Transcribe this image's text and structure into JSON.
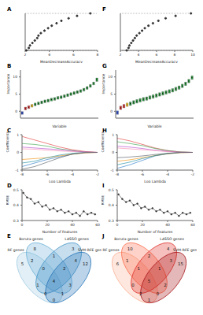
{
  "chart_data": [
    {
      "type": "dot",
      "title": "A",
      "x_label": "MeanDecreaseAccuracy",
      "orientation": "horizontal",
      "tick_labels": "x",
      "grid": true,
      "marker": "circle",
      "color": "#333333",
      "categories": [
        null,
        null,
        null,
        null,
        null,
        null,
        null,
        null,
        null,
        null,
        null,
        null,
        null,
        null,
        null,
        null
      ],
      "values": [
        7.4,
        6.3,
        5.6,
        5.0,
        4.6,
        4.2,
        3.9,
        3.6,
        3.3,
        3.1,
        3.0,
        2.8,
        2.6,
        2.4,
        2.3,
        2.1
      ],
      "xlim": [
        2,
        8
      ],
      "xticks": [
        2,
        4,
        6,
        8
      ]
    },
    {
      "type": "box",
      "title": "B",
      "x_label": "Variable",
      "y_label": "Importance",
      "tick_labels": "y",
      "categories": [
        null,
        null,
        null,
        null,
        null,
        null,
        null,
        null,
        null,
        null,
        null,
        null,
        null,
        null,
        null,
        null,
        null,
        null,
        null,
        null,
        null,
        null,
        null,
        null
      ],
      "q1": [
        -0.9,
        0.4,
        0.8,
        1.2,
        1.6,
        1.9,
        2.2,
        2.5,
        2.7,
        3.0,
        3.2,
        3.5,
        3.7,
        4.0,
        4.3,
        4.6,
        4.9,
        5.2,
        5.5,
        5.9,
        6.4,
        7.0,
        7.7,
        8.7
      ],
      "median": [
        -0.5,
        0.8,
        1.2,
        1.6,
        2.0,
        2.3,
        2.6,
        2.9,
        3.1,
        3.4,
        3.6,
        3.9,
        4.1,
        4.4,
        4.7,
        5.0,
        5.3,
        5.6,
        5.9,
        6.3,
        6.8,
        7.4,
        8.1,
        9.2
      ],
      "q3": [
        -0.1,
        1.2,
        1.6,
        2.0,
        2.4,
        2.7,
        3.0,
        3.3,
        3.5,
        3.8,
        4.0,
        4.3,
        4.5,
        4.8,
        5.1,
        5.4,
        5.7,
        6.0,
        6.3,
        6.7,
        7.2,
        7.8,
        8.5,
        9.7
      ],
      "colors": [
        "#3b5bdb",
        "#e03131",
        "#e03131",
        "#f5c518",
        "#2f9e44",
        "#2f9e44",
        "#2f9e44",
        "#2f9e44",
        "#2f9e44",
        "#2f9e44",
        "#2f9e44",
        "#2f9e44",
        "#2f9e44",
        "#2f9e44",
        "#2f9e44",
        "#2f9e44",
        "#2f9e44",
        "#2f9e44",
        "#2f9e44",
        "#2f9e44",
        "#2f9e44",
        "#2f9e44",
        "#2f9e44",
        "#2f9e44"
      ],
      "ylim": [
        -2,
        12
      ],
      "yticks": [
        0,
        5,
        10
      ]
    },
    {
      "type": "line",
      "title": "C",
      "x_label": "Log Lambda",
      "y_label": "Coefficients",
      "x": [
        -8,
        -7,
        -6,
        -5,
        -4,
        -3,
        -2
      ],
      "xlim": [
        -8,
        -2
      ],
      "xticks": [
        -8,
        -6,
        -4,
        -2
      ],
      "ylim": [
        -1,
        1
      ],
      "yticks": [
        -1,
        0,
        1
      ],
      "series": [
        {
          "color": "#e03131",
          "values": [
            0.9,
            0.7,
            0.5,
            0.3,
            0.15,
            0.05,
            0
          ]
        },
        {
          "color": "#1971c2",
          "values": [
            -0.8,
            -0.6,
            -0.4,
            -0.25,
            -0.1,
            0,
            0
          ]
        },
        {
          "color": "#2f9e44",
          "values": [
            0.5,
            0.45,
            0.35,
            0.2,
            0.1,
            0.02,
            0
          ]
        },
        {
          "color": "#f08c00",
          "values": [
            -0.4,
            -0.35,
            -0.3,
            -0.2,
            -0.1,
            -0.03,
            0
          ]
        },
        {
          "color": "#ae3ec9",
          "values": [
            0.3,
            0.25,
            0.2,
            0.15,
            0.08,
            0.03,
            0
          ]
        },
        {
          "color": "#0c8599",
          "values": [
            -0.6,
            -0.5,
            -0.3,
            -0.15,
            -0.05,
            0,
            0
          ]
        },
        {
          "color": "#f783ac",
          "values": [
            0.2,
            0.18,
            0.12,
            0.08,
            0.05,
            0.01,
            0
          ]
        },
        {
          "color": "#495057",
          "values": [
            -0.95,
            -0.8,
            -0.55,
            -0.3,
            -0.1,
            -0.02,
            0
          ]
        }
      ]
    },
    {
      "type": "line",
      "title": "D",
      "x_label": "Number of Features",
      "y_label": "RMSE",
      "color": "#333333",
      "marker": "circle",
      "x": [
        1,
        4,
        7,
        10,
        13,
        16,
        19,
        22,
        25,
        28,
        31,
        34,
        37,
        40,
        43,
        46,
        49,
        52,
        55,
        58
      ],
      "values": [
        0.48,
        0.45,
        0.44,
        0.41,
        0.42,
        0.39,
        0.4,
        0.37,
        0.38,
        0.36,
        0.37,
        0.35,
        0.36,
        0.34,
        0.35,
        0.33,
        0.36,
        0.34,
        0.35,
        0.34
      ],
      "xlim": [
        0,
        60
      ],
      "xticks": [
        0,
        20,
        40,
        60
      ],
      "ylim": [
        0.3,
        0.5
      ],
      "yticks": [
        0.3,
        0.4,
        0.5
      ]
    },
    {
      "type": "venn",
      "title": "E",
      "sets": [
        {
          "name": "RF genes",
          "color": "#9ecae1"
        },
        {
          "name": "Boruta genes",
          "color": "#6baed6"
        },
        {
          "name": "LASSO genes",
          "color": "#4292c6"
        },
        {
          "name": "SVM-RFE genes",
          "color": "#2171b5"
        }
      ],
      "regions": [
        {
          "sets": [
            0
          ],
          "value": 5
        },
        {
          "sets": [
            1
          ],
          "value": 8
        },
        {
          "sets": [
            2
          ],
          "value": 3
        },
        {
          "sets": [
            3
          ],
          "value": 12
        },
        {
          "sets": [
            0,
            1
          ],
          "value": 2
        },
        {
          "sets": [
            1,
            2
          ],
          "value": 1
        },
        {
          "sets": [
            2,
            3
          ],
          "value": 4
        },
        {
          "sets": [
            0,
            3
          ],
          "value": 0
        },
        {
          "sets": [
            0,
            2
          ],
          "value": 1
        },
        {
          "sets": [
            1,
            3
          ],
          "value": 3
        },
        {
          "sets": [
            0,
            1,
            2
          ],
          "value": 0
        },
        {
          "sets": [
            1,
            2,
            3
          ],
          "value": 2
        },
        {
          "sets": [
            0,
            1,
            3
          ],
          "value": 1
        },
        {
          "sets": [
            0,
            2,
            3
          ],
          "value": 0
        },
        {
          "sets": [
            0,
            1,
            2,
            3
          ],
          "value": 4
        }
      ]
    },
    {
      "type": "dot",
      "title": "F",
      "x_label": "MeanDecreaseAccuracy",
      "orientation": "horizontal",
      "tick_labels": "x",
      "grid": true,
      "marker": "circle",
      "color": "#333333",
      "categories": [
        null,
        null,
        null,
        null,
        null,
        null,
        null,
        null,
        null,
        null,
        null,
        null,
        null,
        null,
        null,
        null
      ],
      "values": [
        9.8,
        8.1,
        7.0,
        6.2,
        5.6,
        5.1,
        4.7,
        4.4,
        4.1,
        3.8,
        3.6,
        3.4,
        3.2,
        3.0,
        2.9,
        2.7
      ],
      "xlim": [
        2,
        10
      ],
      "xticks": [
        2,
        4,
        6,
        8,
        10
      ]
    },
    {
      "type": "box",
      "title": "G",
      "x_label": "Variable",
      "y_label": "Importance",
      "tick_labels": "y",
      "categories": [
        null,
        null,
        null,
        null,
        null,
        null,
        null,
        null,
        null,
        null,
        null,
        null,
        null,
        null,
        null,
        null,
        null,
        null,
        null,
        null,
        null,
        null,
        null,
        null
      ],
      "q1": [
        -0.9,
        0.5,
        1.0,
        1.4,
        1.7,
        2.1,
        2.4,
        2.7,
        3.0,
        3.2,
        3.5,
        3.8,
        4.1,
        4.4,
        4.7,
        5.0,
        5.3,
        5.6,
        6.0,
        6.4,
        6.9,
        7.5,
        8.3,
        9.3
      ],
      "median": [
        -0.4,
        1.0,
        1.5,
        1.9,
        2.2,
        2.6,
        2.9,
        3.2,
        3.5,
        3.7,
        4.0,
        4.3,
        4.6,
        4.9,
        5.2,
        5.5,
        5.8,
        6.1,
        6.5,
        6.9,
        7.4,
        8.0,
        8.8,
        9.8
      ],
      "q3": [
        0.1,
        1.5,
        2.0,
        2.4,
        2.7,
        3.1,
        3.4,
        3.7,
        4.0,
        4.2,
        4.5,
        4.8,
        5.1,
        5.4,
        5.7,
        6.0,
        6.3,
        6.6,
        7.0,
        7.4,
        7.9,
        8.5,
        9.3,
        10.3
      ],
      "colors": [
        "#3b5bdb",
        "#e03131",
        "#e03131",
        "#f5c518",
        "#2f9e44",
        "#2f9e44",
        "#2f9e44",
        "#2f9e44",
        "#2f9e44",
        "#2f9e44",
        "#2f9e44",
        "#2f9e44",
        "#2f9e44",
        "#2f9e44",
        "#2f9e44",
        "#2f9e44",
        "#2f9e44",
        "#2f9e44",
        "#2f9e44",
        "#2f9e44",
        "#2f9e44",
        "#2f9e44",
        "#2f9e44",
        "#2f9e44"
      ],
      "ylim": [
        -2,
        12
      ],
      "yticks": [
        0,
        5,
        10
      ]
    },
    {
      "type": "line",
      "title": "H",
      "x_label": "Log Lambda",
      "y_label": "Coefficients",
      "x": [
        -8,
        -7,
        -6,
        -5,
        -4,
        -3,
        -2
      ],
      "xlim": [
        -8,
        -2
      ],
      "xticks": [
        -8,
        -6,
        -4,
        -2
      ],
      "ylim": [
        -1,
        1
      ],
      "yticks": [
        -1,
        0,
        1
      ],
      "series": [
        {
          "color": "#e03131",
          "values": [
            0.8,
            0.65,
            0.45,
            0.25,
            0.1,
            0.02,
            0
          ]
        },
        {
          "color": "#1971c2",
          "values": [
            -0.9,
            -0.7,
            -0.45,
            -0.2,
            -0.08,
            0,
            0
          ]
        },
        {
          "color": "#2f9e44",
          "values": [
            0.6,
            0.5,
            0.38,
            0.22,
            0.1,
            0.03,
            0
          ]
        },
        {
          "color": "#f08c00",
          "values": [
            -0.5,
            -0.42,
            -0.3,
            -0.18,
            -0.08,
            -0.02,
            0
          ]
        },
        {
          "color": "#ae3ec9",
          "values": [
            0.35,
            0.3,
            0.22,
            0.12,
            0.06,
            0.01,
            0
          ]
        },
        {
          "color": "#0c8599",
          "values": [
            -0.7,
            -0.55,
            -0.35,
            -0.18,
            -0.06,
            0,
            0
          ]
        },
        {
          "color": "#f783ac",
          "values": [
            0.25,
            0.2,
            0.15,
            0.1,
            0.04,
            0.01,
            0
          ]
        },
        {
          "color": "#495057",
          "values": [
            -0.3,
            -0.26,
            -0.2,
            -0.12,
            -0.05,
            -0.01,
            0
          ]
        }
      ]
    },
    {
      "type": "line",
      "title": "I",
      "x_label": "Number of Features",
      "y_label": "RMSE",
      "color": "#333333",
      "marker": "circle",
      "x": [
        1,
        4,
        7,
        10,
        13,
        16,
        19,
        22,
        25,
        28,
        31,
        34,
        37,
        40,
        43,
        46,
        49,
        52,
        55,
        58
      ],
      "values": [
        0.47,
        0.44,
        0.42,
        0.43,
        0.4,
        0.41,
        0.38,
        0.39,
        0.37,
        0.38,
        0.36,
        0.37,
        0.35,
        0.36,
        0.34,
        0.35,
        0.33,
        0.35,
        0.34,
        0.35
      ],
      "xlim": [
        0,
        60
      ],
      "xticks": [
        0,
        20,
        40,
        60
      ],
      "ylim": [
        0.3,
        0.5
      ],
      "yticks": [
        0.3,
        0.4,
        0.5
      ]
    },
    {
      "type": "venn",
      "title": "J",
      "sets": [
        {
          "name": "RF genes",
          "color": "#fcae91"
        },
        {
          "name": "Boruta genes",
          "color": "#fb6a4a"
        },
        {
          "name": "LASSO genes",
          "color": "#de2d26"
        },
        {
          "name": "SVM-RFE genes",
          "color": "#a50f15"
        }
      ],
      "regions": [
        {
          "sets": [
            0
          ],
          "value": 6
        },
        {
          "sets": [
            1
          ],
          "value": 10
        },
        {
          "sets": [
            2
          ],
          "value": 4
        },
        {
          "sets": [
            3
          ],
          "value": 15
        },
        {
          "sets": [
            0,
            1
          ],
          "value": 1
        },
        {
          "sets": [
            1,
            2
          ],
          "value": 2
        },
        {
          "sets": [
            2,
            3
          ],
          "value": 3
        },
        {
          "sets": [
            0,
            3
          ],
          "value": 1
        },
        {
          "sets": [
            0,
            2
          ],
          "value": 0
        },
        {
          "sets": [
            1,
            3
          ],
          "value": 2
        },
        {
          "sets": [
            0,
            1,
            2
          ],
          "value": 1
        },
        {
          "sets": [
            1,
            2,
            3
          ],
          "value": 1
        },
        {
          "sets": [
            0,
            1,
            3
          ],
          "value": 0
        },
        {
          "sets": [
            0,
            2,
            3
          ],
          "value": 2
        },
        {
          "sets": [
            0,
            1,
            2,
            3
          ],
          "value": 5
        }
      ]
    }
  ]
}
